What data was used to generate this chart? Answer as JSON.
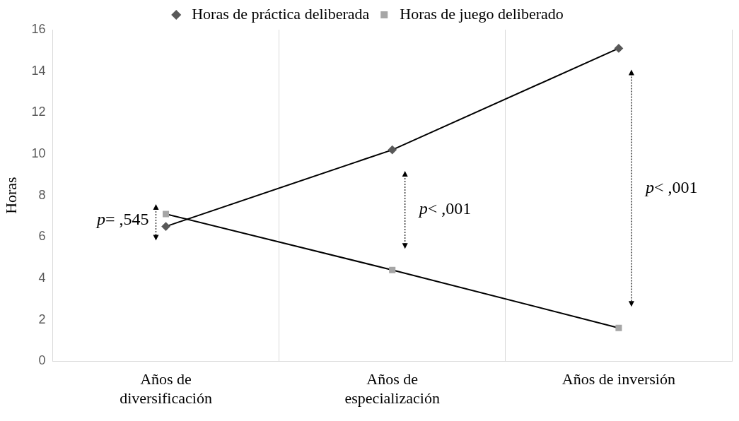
{
  "chart_data": {
    "type": "line",
    "ylabel": "Horas",
    "categories": [
      "Años de diversificación",
      "Años de especialización",
      "Años de inversión"
    ],
    "series": [
      {
        "name": "Horas de práctica deliberada",
        "color": "#595959",
        "marker": "diamond",
        "values": [
          6.5,
          10.2,
          15.1
        ]
      },
      {
        "name": "Horas de juego deliberado",
        "color": "#a6a6a6",
        "marker": "square",
        "values": [
          7.1,
          4.4,
          1.6
        ]
      }
    ],
    "ylim": [
      0,
      16
    ],
    "yticks": [
      0,
      2,
      4,
      6,
      8,
      10,
      12,
      14,
      16
    ],
    "grid": "x",
    "legend": "top",
    "annotations": [
      "p= ,545",
      "p< ,001",
      "p< ,001"
    ]
  }
}
